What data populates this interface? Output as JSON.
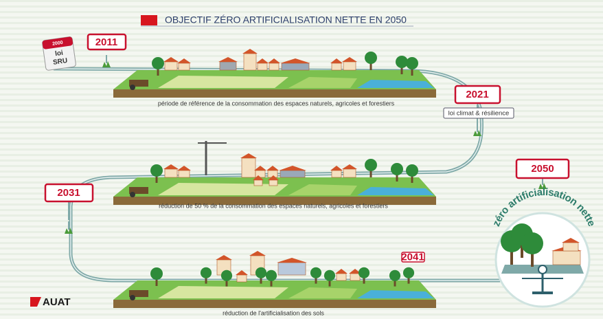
{
  "header": {
    "title": "OBJECTIF ZÉRO ARTIFICIALISATION NETTE EN 2050"
  },
  "milestones": [
    {
      "year": "2000",
      "label_line1": "loi",
      "label_line2": "SRU"
    },
    {
      "year": "2011"
    },
    {
      "year": "2021",
      "label": "loi climat & résilience"
    },
    {
      "year": "2031"
    },
    {
      "year": "2041"
    },
    {
      "year": "2050"
    }
  ],
  "captions": [
    "période de référence de la consommation des espaces naturels, agricoles et forestiers",
    "réduction de 50 % de la consommation des espaces naturels, agricoles et forestiers",
    "réduction de l'artificialisation des sols"
  ],
  "goal": "zéro artificialisation nette",
  "logo": "AUAT"
}
